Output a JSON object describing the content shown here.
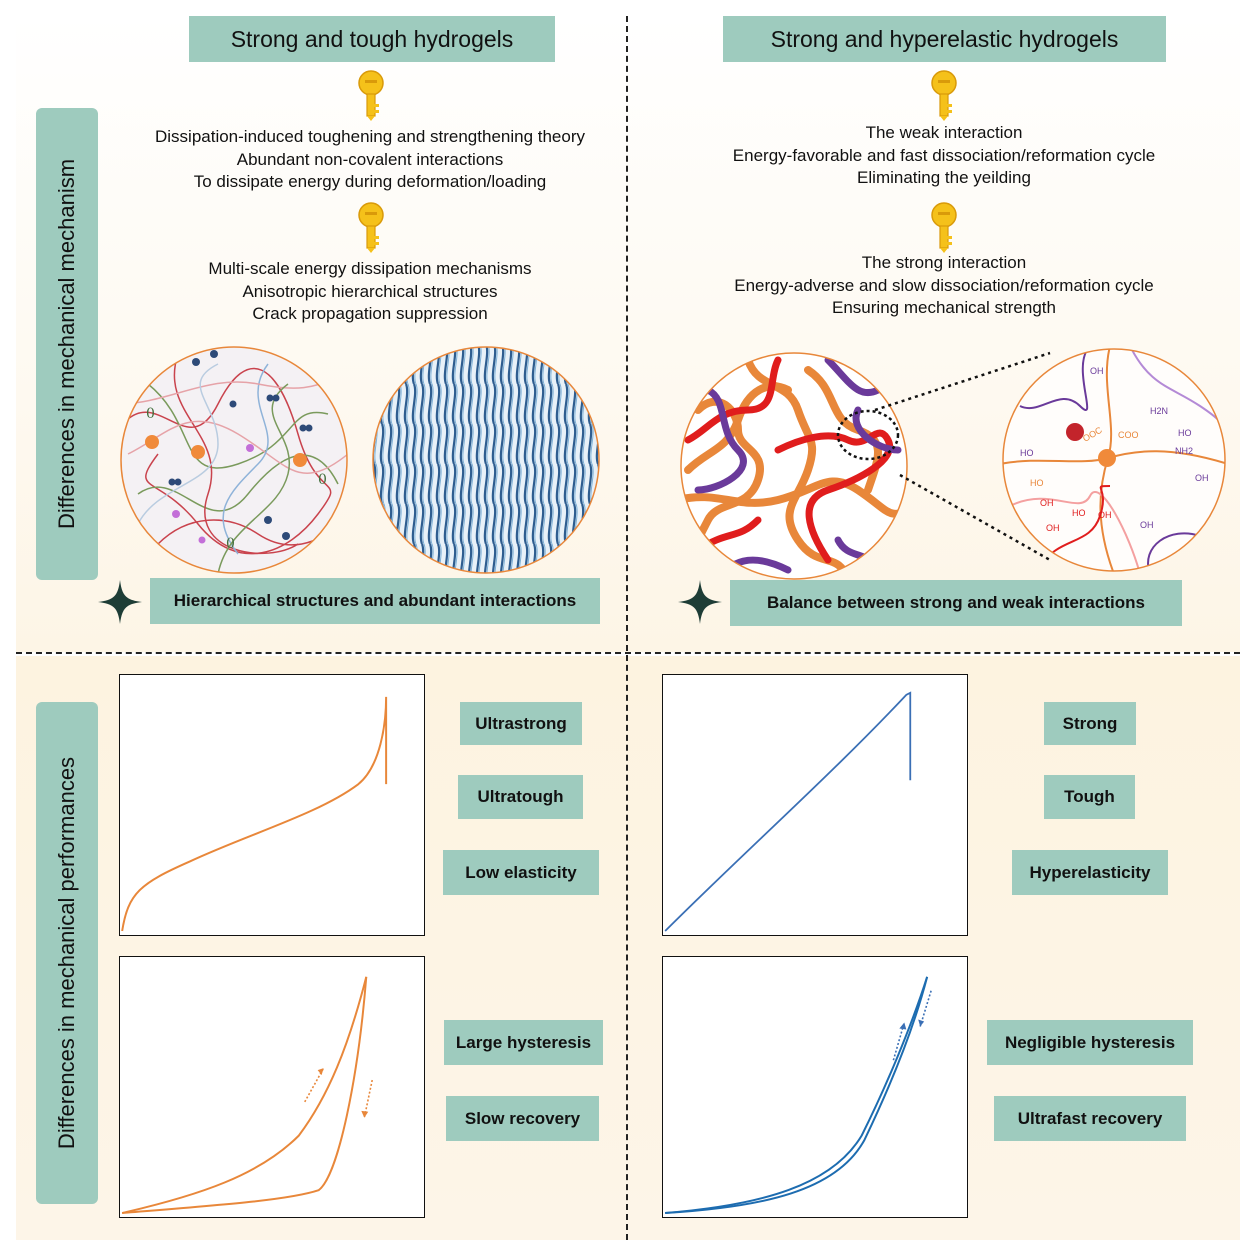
{
  "headers": {
    "left_title": "Strong and tough hydrogels",
    "right_title": "Strong and hyperelastic hydrogels"
  },
  "side_labels": {
    "mechanism": "Differences in mechanical mechanism",
    "performance": "Differences in mechanical performances"
  },
  "left_mechanism": {
    "block1": [
      "Dissipation-induced toughening and strengthening theory",
      "Abundant non-covalent interactions",
      "To dissipate energy during deformation/loading"
    ],
    "block2": [
      "Multi-scale energy dissipation mechanisms",
      "Anisotropic hierarchical structures",
      "Crack propagation suppression"
    ],
    "summary": "Hierarchical structures and abundant interactions"
  },
  "right_mechanism": {
    "block1": [
      "The weak interaction",
      "Energy-favorable and fast dissociation/reformation cycle",
      "Eliminating the yeilding"
    ],
    "block2": [
      "The strong interaction",
      "Energy-adverse and slow dissociation/reformation cycle",
      "Ensuring mechanical strength"
    ],
    "summary": "Balance between strong and weak interactions"
  },
  "molecule_labels": [
    "OH",
    "HO",
    "NH2",
    "H2N",
    "OOC",
    "COO"
  ],
  "left_performance": {
    "tensile_tags": [
      "Ultrastrong",
      "Ultratough",
      "Low elasticity"
    ],
    "cyclic_tags": [
      "Large hysteresis",
      "Slow recovery"
    ]
  },
  "right_performance": {
    "tensile_tags": [
      "Strong",
      "Tough",
      "Hyperelasticity"
    ],
    "cyclic_tags": [
      "Negligible hysteresis",
      "Ultrafast recovery"
    ]
  },
  "colors": {
    "teal": "#9ecbbe",
    "orange": "#e8873a",
    "blue": "#3a6fb5",
    "key_gold": "#f5c11a"
  }
}
